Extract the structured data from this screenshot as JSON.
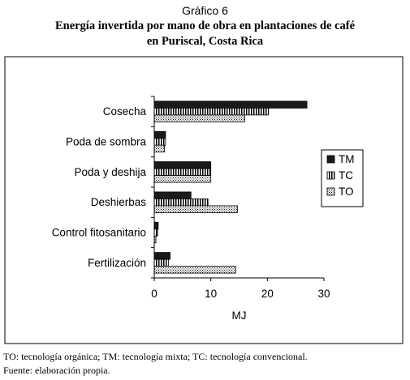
{
  "figure_label": "Gráfico 6",
  "title_line1": "Energía invertida por mano de obra en plantaciones de café",
  "title_line2": "en Puriscal, Costa Rica",
  "footnote": "TO: tecnología orgánica; TM: tecnología mixta; TC: tecnología convencional.",
  "source": "Fuente: elaboración propia.",
  "colors": {
    "TM": "#1a1a1a",
    "TC": "vertical-stripes",
    "TO": "dotted"
  },
  "chart_data": {
    "type": "bar",
    "orientation": "horizontal",
    "categories": [
      "Cosecha",
      "Poda de sombra",
      "Poda y deshija",
      "Deshierbas",
      "Control fitosanitario",
      "Fertilización"
    ],
    "series": [
      {
        "name": "TM",
        "values": [
          27,
          2,
          10,
          6.5,
          0.7,
          2.8
        ]
      },
      {
        "name": "TC",
        "values": [
          20.2,
          2,
          10,
          9.5,
          0.6,
          2.5
        ]
      },
      {
        "name": "TO",
        "values": [
          16,
          1.8,
          10,
          14.7,
          0.3,
          14.4
        ]
      }
    ],
    "xlabel": "MJ",
    "xlim": [
      0,
      30
    ],
    "xticks": [
      "0",
      "10",
      "20",
      "30"
    ],
    "legend": "right",
    "grid": false
  }
}
